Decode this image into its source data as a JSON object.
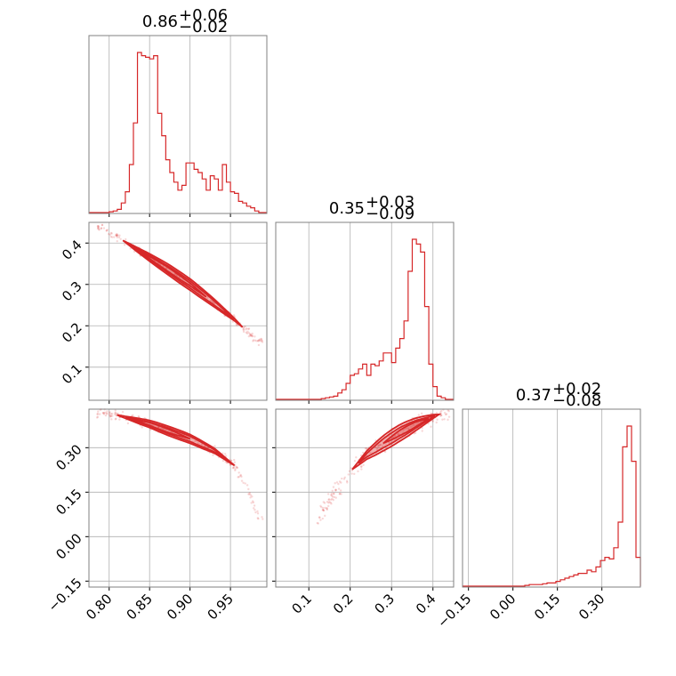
{
  "chart_data": {
    "type": "corner",
    "color": "#d62728",
    "grid_color": "#b0b0b0",
    "titles": [
      {
        "value": "0.86",
        "plus": "+0.06",
        "minus": "−0.02"
      },
      {
        "value": "0.35",
        "plus": "+0.03",
        "minus": "−0.09"
      },
      {
        "value": "0.37",
        "plus": "+0.02",
        "minus": "−0.08"
      }
    ],
    "params": [
      {
        "range": [
          0.775,
          0.995
        ],
        "ticks": [
          0.8,
          0.85,
          0.9,
          0.95
        ],
        "tick_labels": [
          "0.80",
          "0.85",
          "0.90",
          "0.95"
        ]
      },
      {
        "range": [
          0.02,
          0.45
        ],
        "ticks": [
          0.1,
          0.2,
          0.3,
          0.4
        ],
        "tick_labels": [
          "0.1",
          "0.2",
          "0.3",
          "0.4"
        ]
      },
      {
        "range": [
          -0.17,
          0.43
        ],
        "ticks": [
          -0.15,
          0.0,
          0.15,
          0.3
        ],
        "tick_labels": [
          "−0.15",
          "0.00",
          "0.15",
          "0.30"
        ]
      }
    ],
    "histograms": [
      {
        "x": [
          0.775,
          0.78,
          0.785,
          0.79,
          0.795,
          0.8,
          0.805,
          0.81,
          0.815,
          0.82,
          0.825,
          0.83,
          0.835,
          0.84,
          0.845,
          0.85,
          0.855,
          0.86,
          0.865,
          0.87,
          0.875,
          0.88,
          0.885,
          0.89,
          0.895,
          0.9,
          0.905,
          0.91,
          0.915,
          0.92,
          0.925,
          0.93,
          0.935,
          0.94,
          0.945,
          0.95,
          0.955,
          0.96,
          0.965,
          0.97,
          0.975,
          0.98,
          0.985,
          0.99
        ],
        "counts": [
          0,
          0,
          0,
          0,
          0,
          0.005,
          0.01,
          0.02,
          0.06,
          0.13,
          0.3,
          0.56,
          1.0,
          0.98,
          0.97,
          0.96,
          0.98,
          0.62,
          0.48,
          0.33,
          0.25,
          0.19,
          0.14,
          0.17,
          0.31,
          0.31,
          0.27,
          0.25,
          0.21,
          0.14,
          0.23,
          0.21,
          0.14,
          0.3,
          0.19,
          0.13,
          0.12,
          0.07,
          0.06,
          0.04,
          0.03,
          0.01,
          0,
          0
        ]
      },
      {
        "x": [
          0.02,
          0.03,
          0.04,
          0.05,
          0.06,
          0.07,
          0.08,
          0.09,
          0.1,
          0.11,
          0.12,
          0.13,
          0.14,
          0.15,
          0.16,
          0.17,
          0.18,
          0.19,
          0.2,
          0.21,
          0.22,
          0.23,
          0.24,
          0.25,
          0.26,
          0.27,
          0.28,
          0.29,
          0.3,
          0.31,
          0.32,
          0.33,
          0.34,
          0.35,
          0.36,
          0.37,
          0.38,
          0.39,
          0.4,
          0.41,
          0.42,
          0.43,
          0.44
        ],
        "counts": [
          0,
          0,
          0,
          0,
          0,
          0,
          0,
          0,
          0,
          0,
          0,
          0.005,
          0.01,
          0.015,
          0.02,
          0.04,
          0.06,
          0.1,
          0.15,
          0.16,
          0.19,
          0.22,
          0.15,
          0.22,
          0.21,
          0.24,
          0.29,
          0.29,
          0.23,
          0.32,
          0.38,
          0.49,
          0.8,
          1.0,
          0.97,
          0.92,
          0.58,
          0.22,
          0.08,
          0.02,
          0.01,
          0,
          0
        ]
      },
      {
        "x": [
          -0.17,
          -0.155,
          -0.14,
          -0.125,
          -0.11,
          -0.095,
          -0.08,
          -0.065,
          -0.05,
          -0.035,
          -0.02,
          -0.005,
          0.01,
          0.025,
          0.04,
          0.055,
          0.07,
          0.085,
          0.1,
          0.115,
          0.13,
          0.145,
          0.16,
          0.175,
          0.19,
          0.205,
          0.22,
          0.235,
          0.25,
          0.265,
          0.28,
          0.295,
          0.31,
          0.325,
          0.34,
          0.355,
          0.37,
          0.385,
          0.4,
          0.415
        ],
        "counts": [
          0,
          0,
          0,
          0,
          0,
          0,
          0,
          0,
          0,
          0,
          0,
          0,
          0,
          0,
          0.005,
          0.01,
          0.01,
          0.01,
          0.015,
          0.02,
          0.02,
          0.03,
          0.04,
          0.05,
          0.06,
          0.07,
          0.08,
          0.08,
          0.1,
          0.09,
          0.12,
          0.16,
          0.18,
          0.17,
          0.24,
          0.4,
          0.87,
          1.0,
          0.78,
          0.18
        ]
      }
    ],
    "joint_pairs": [
      {
        "row": 1,
        "col": 0,
        "ridge_x": [
          0.79,
          0.81,
          0.83,
          0.85,
          0.87,
          0.9,
          0.93,
          0.955,
          0.985
        ],
        "ridge_y": [
          0.44,
          0.415,
          0.39,
          0.365,
          0.34,
          0.3,
          0.255,
          0.215,
          0.16
        ],
        "contour_ranges": [
          [
            0.817,
            0.965
          ],
          [
            0.825,
            0.955
          ],
          [
            0.835,
            0.92
          ]
        ],
        "contour_widths": [
          0.014,
          0.009,
          0.005
        ],
        "scatter_range": [
          0.785,
          0.99
        ],
        "scatter_spread": 0.012
      },
      {
        "row": 2,
        "col": 0,
        "ridge_x": [
          0.79,
          0.81,
          0.83,
          0.85,
          0.87,
          0.9,
          0.93,
          0.955,
          0.97,
          0.985
        ],
        "ridge_y": [
          0.42,
          0.41,
          0.395,
          0.38,
          0.36,
          0.33,
          0.29,
          0.24,
          0.17,
          0.06
        ],
        "contour_ranges": [
          [
            0.81,
            0.955
          ],
          [
            0.82,
            0.945
          ],
          [
            0.83,
            0.9
          ]
        ],
        "contour_widths": [
          0.016,
          0.01,
          0.006
        ],
        "scatter_range": [
          0.785,
          0.99
        ],
        "scatter_spread": 0.02
      },
      {
        "row": 2,
        "col": 1,
        "ridge_x": [
          0.12,
          0.16,
          0.2,
          0.24,
          0.28,
          0.32,
          0.36,
          0.4,
          0.43
        ],
        "ridge_y": [
          0.06,
          0.14,
          0.22,
          0.275,
          0.315,
          0.35,
          0.38,
          0.405,
          0.42
        ],
        "contour_ranges": [
          [
            0.205,
            0.415
          ],
          [
            0.22,
            0.405
          ],
          [
            0.28,
            0.39
          ]
        ],
        "contour_widths": [
          0.028,
          0.018,
          0.01
        ],
        "scatter_range": [
          0.12,
          0.44
        ],
        "scatter_spread": 0.035
      }
    ]
  }
}
